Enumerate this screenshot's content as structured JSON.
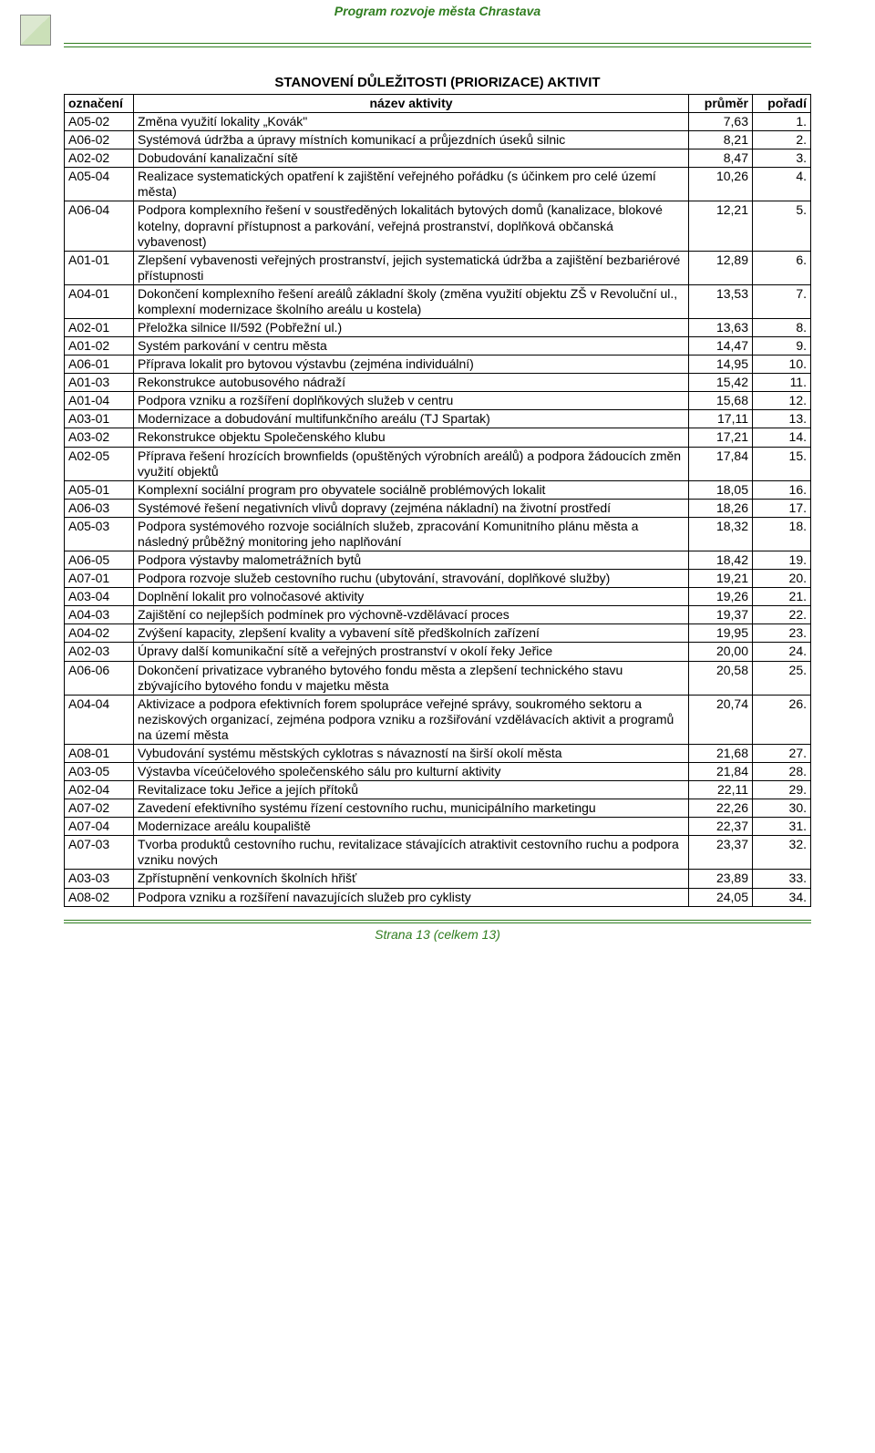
{
  "colors": {
    "rule": "#2f7d1f",
    "header_text": "#2f7d1f",
    "footer_text": "#2f7d1f",
    "black": "#000000"
  },
  "header": {
    "title": "Program rozvoje města Chrastava"
  },
  "table": {
    "title": "STANOVENÍ DŮLEŽITOSTI (PRIORIZACE) AKTIVIT",
    "columns": {
      "code": "označení",
      "name": "název aktivity",
      "avg": "průměr",
      "rank": "pořadí"
    },
    "rows": [
      {
        "code": "A05-02",
        "name": "Změna využití lokality „Kovák\"",
        "avg": "7,63",
        "rank": "1."
      },
      {
        "code": "A06-02",
        "name": "Systémová údržba a úpravy místních komunikací a průjezdních úseků silnic",
        "avg": "8,21",
        "rank": "2."
      },
      {
        "code": "A02-02",
        "name": "Dobudování kanalizační sítě",
        "avg": "8,47",
        "rank": "3."
      },
      {
        "code": "A05-04",
        "name": "Realizace systematických opatření k zajištění veřejného pořádku (s účinkem pro celé území města)",
        "avg": "10,26",
        "rank": "4."
      },
      {
        "code": "A06-04",
        "name": "Podpora komplexního řešení v soustředěných lokalitách bytových domů (kanalizace, blokové kotelny, dopravní přístupnost a parkování, veřejná prostranství, doplňková občanská vybavenost)",
        "avg": "12,21",
        "rank": "5."
      },
      {
        "code": "A01-01",
        "name": "Zlepšení vybavenosti veřejných prostranství, jejich systematická údržba a zajištění  bezbariérové přístupnosti",
        "avg": "12,89",
        "rank": "6."
      },
      {
        "code": "A04-01",
        "name": "Dokončení komplexního řešení areálů základní školy (změna využití objektu ZŠ v Revoluční ul., komplexní modernizace školního areálu u kostela)",
        "avg": "13,53",
        "rank": "7."
      },
      {
        "code": "A02-01",
        "name": "Přeložka silnice II/592 (Pobřežní ul.)",
        "avg": "13,63",
        "rank": "8."
      },
      {
        "code": "A01-02",
        "name": "Systém parkování v centru města",
        "avg": "14,47",
        "rank": "9."
      },
      {
        "code": "A06-01",
        "name": "Příprava lokalit pro bytovou výstavbu (zejména individuální)",
        "avg": "14,95",
        "rank": "10."
      },
      {
        "code": "A01-03",
        "name": "Rekonstrukce autobusového nádraží",
        "avg": "15,42",
        "rank": "11."
      },
      {
        "code": "A01-04",
        "name": "Podpora vzniku a rozšíření doplňkových služeb v centru",
        "avg": "15,68",
        "rank": "12."
      },
      {
        "code": "A03-01",
        "name": "Modernizace a dobudování multifunkčního areálu (TJ Spartak)",
        "avg": "17,11",
        "rank": "13."
      },
      {
        "code": "A03-02",
        "name": "Rekonstrukce objektu Společenského klubu",
        "avg": "17,21",
        "rank": "14."
      },
      {
        "code": "A02-05",
        "name": "Příprava řešení hrozících brownfields (opuštěných výrobních areálů) a podpora žádoucích změn využití objektů",
        "avg": "17,84",
        "rank": "15."
      },
      {
        "code": "A05-01",
        "name": "Komplexní sociální program pro obyvatele sociálně problémových lokalit",
        "avg": "18,05",
        "rank": "16."
      },
      {
        "code": "A06-03",
        "name": "Systémové řešení negativních vlivů dopravy (zejména nákladní) na životní prostředí",
        "avg": "18,26",
        "rank": "17."
      },
      {
        "code": "A05-03",
        "name": "Podpora systémového rozvoje sociálních služeb, zpracování Komunitního plánu města a následný průběžný monitoring jeho naplňování",
        "avg": "18,32",
        "rank": "18."
      },
      {
        "code": "A06-05",
        "name": "Podpora výstavby malometrážních bytů",
        "avg": "18,42",
        "rank": "19."
      },
      {
        "code": "A07-01",
        "name": "Podpora rozvoje služeb cestovního ruchu (ubytování, stravování, doplňkové služby)",
        "avg": "19,21",
        "rank": "20."
      },
      {
        "code": "A03-04",
        "name": "Doplnění lokalit pro volnočasové aktivity",
        "avg": "19,26",
        "rank": "21."
      },
      {
        "code": "A04-03",
        "name": "Zajištění co nejlepších podmínek pro výchovně-vzdělávací proces",
        "avg": "19,37",
        "rank": "22."
      },
      {
        "code": "A04-02",
        "name": "Zvýšení kapacity, zlepšení kvality a vybavení sítě předškolních zařízení",
        "avg": "19,95",
        "rank": "23."
      },
      {
        "code": "A02-03",
        "name": "Úpravy další komunikační sítě a veřejných prostranství v okolí řeky Jeřice",
        "avg": "20,00",
        "rank": "24."
      },
      {
        "code": "A06-06",
        "name": "Dokončení privatizace vybraného bytového fondu města a zlepšení technického stavu zbývajícího bytového fondu v majetku města",
        "avg": "20,58",
        "rank": "25."
      },
      {
        "code": "A04-04",
        "name": "Aktivizace a podpora efektivních forem spolupráce veřejné správy, soukromého sektoru a neziskových organizací, zejména podpora vzniku a rozšiřování vzdělávacích aktivit a programů na území města",
        "avg": "20,74",
        "rank": "26."
      },
      {
        "code": "A08-01",
        "name": "Vybudování systému městských cyklotras s návazností na širší okolí města",
        "avg": "21,68",
        "rank": "27."
      },
      {
        "code": "A03-05",
        "name": "Výstavba víceúčelového společenského sálu pro kulturní aktivity",
        "avg": "21,84",
        "rank": "28."
      },
      {
        "code": "A02-04",
        "name": "Revitalizace toku Jeřice a jejích přítoků",
        "avg": "22,11",
        "rank": "29."
      },
      {
        "code": "A07-02",
        "name": "Zavedení efektivního systému řízení cestovního ruchu, municipálního marketingu",
        "avg": "22,26",
        "rank": "30."
      },
      {
        "code": "A07-04",
        "name": "Modernizace areálu koupaliště",
        "avg": "22,37",
        "rank": "31."
      },
      {
        "code": "A07-03",
        "name": "Tvorba produktů cestovního ruchu, revitalizace stávajících atraktivit cestovního ruchu a podpora vzniku nových",
        "avg": "23,37",
        "rank": "32."
      },
      {
        "code": "A03-03",
        "name": "Zpřístupnění venkovních školních hřišť",
        "avg": "23,89",
        "rank": "33."
      },
      {
        "code": "A08-02",
        "name": "Podpora vzniku a rozšíření navazujících služeb pro cyklisty",
        "avg": "24,05",
        "rank": "34."
      }
    ]
  },
  "footer": {
    "prefix": "Strana ",
    "page": "13",
    "suffix": " (celkem 13)"
  }
}
